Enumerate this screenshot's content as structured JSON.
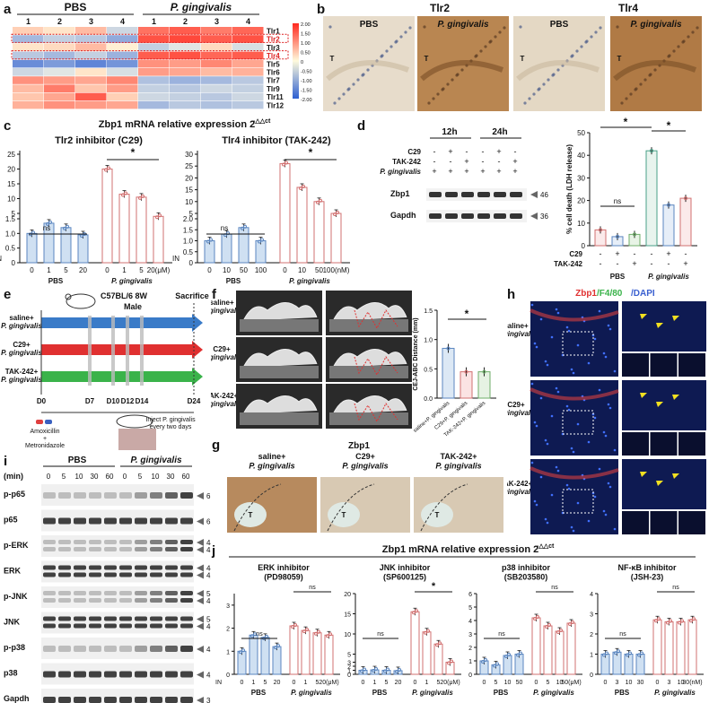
{
  "panel_letters": [
    "a",
    "b",
    "c",
    "d",
    "e",
    "f",
    "g",
    "h",
    "i",
    "j"
  ],
  "a": {
    "groups": [
      "PBS",
      "P. gingivalis"
    ],
    "columns": [
      "1",
      "2",
      "3",
      "4",
      "1",
      "2",
      "3",
      "4"
    ],
    "rows": [
      "Tlr1",
      "Tlr2",
      "Tlr3",
      "Tlr4",
      "Tlr5",
      "Tlr6",
      "Tlr7",
      "Tlr9",
      "Tlr11",
      "Tlr12"
    ],
    "highlight_rows": [
      "Tlr2",
      "Tlr4"
    ],
    "scale_ticks": [
      "2.00",
      "1.50",
      "1.00",
      "0.50",
      "0",
      "-0.50",
      "-1.00",
      "-1.50",
      "-2.00"
    ],
    "values": [
      [
        0.4,
        0.2,
        0.6,
        -0.4,
        1.3,
        1.5,
        1.2,
        1.4
      ],
      [
        -0.8,
        -0.5,
        -0.6,
        -1.0,
        1.6,
        1.7,
        1.5,
        1.6
      ],
      [
        0.2,
        0.3,
        0.6,
        0.1,
        -0.5,
        -0.2,
        0.3,
        -0.3
      ],
      [
        -0.6,
        -0.8,
        -0.5,
        -0.9,
        1.5,
        1.6,
        1.4,
        1.5
      ],
      [
        -1.4,
        -1.2,
        -1.5,
        -1.3,
        1.0,
        0.9,
        1.1,
        0.8
      ],
      [
        -0.4,
        -0.2,
        0.2,
        -0.3,
        0.9,
        0.8,
        0.6,
        0.7
      ],
      [
        1.0,
        0.9,
        0.8,
        1.1,
        -0.7,
        -0.9,
        -0.8,
        -0.6
      ],
      [
        0.6,
        1.2,
        0.5,
        0.9,
        -0.5,
        -0.6,
        -0.4,
        -0.5
      ],
      [
        0.5,
        0.8,
        1.5,
        0.4,
        -0.4,
        -0.5,
        -0.6,
        -0.4
      ],
      [
        0.7,
        1.0,
        0.9,
        0.8,
        -0.8,
        -0.6,
        -0.7,
        -0.6
      ]
    ]
  },
  "b": {
    "titles": [
      "Tlr2",
      "Tlr4"
    ],
    "labels": [
      "PBS",
      "P. gingivalis",
      "PBS",
      "P. gingivalis"
    ],
    "tissue_mark": "T"
  },
  "c": {
    "title": "Zbp1 mRNA relative expression 2",
    "title_sup": "-△△ct",
    "charts": [
      {
        "title": "Tlr2 inhibitor (C29)",
        "ticks": [
          "0",
          "1",
          "5",
          "20"
        ],
        "unit": "20(μM)",
        "pbs": [
          1.0,
          1.35,
          1.2,
          0.95
        ],
        "pg": [
          20,
          11.5,
          10.5,
          4.0
        ],
        "yticks": [
          "0",
          "0.5",
          "1.0",
          "1.5",
          "5",
          "10",
          "15",
          "20",
          "25"
        ]
      },
      {
        "title": "Tlr4 inhibitor (TAK-242)",
        "ticks": [
          "0",
          "10",
          "50",
          "100"
        ],
        "unit": "100(nM)",
        "pbs": [
          1.0,
          1.3,
          1.6,
          1.0
        ],
        "pg": [
          26,
          16,
          10,
          5
        ],
        "yticks": [
          "0",
          "0.5",
          "1.0",
          "1.5",
          "2.0",
          "5",
          "10",
          "15",
          "20",
          "25",
          "30"
        ]
      }
    ],
    "in_label": "IN",
    "group_pbs": "PBS",
    "group_pg": "P. gingivalis",
    "sig": "*",
    "ns": "ns"
  },
  "d": {
    "times": [
      "12h",
      "24h"
    ],
    "row_labels": [
      "C29",
      "TAK-242",
      "P. gingivalis"
    ],
    "matrix": [
      [
        "-",
        "+",
        "-",
        "-",
        "+",
        "-"
      ],
      [
        "-",
        "-",
        "+",
        "-",
        "-",
        "+"
      ],
      [
        "+",
        "+",
        "+",
        "+",
        "+",
        "+"
      ]
    ],
    "blots": [
      "Zbp1",
      "Gapdh"
    ],
    "kda": [
      "46",
      "36"
    ],
    "chart": {
      "ylabel": "% cell death (LDH release)",
      "yticks": [
        "0",
        "10",
        "20",
        "30",
        "40",
        "50"
      ],
      "values": [
        7,
        4,
        5,
        42,
        18,
        21
      ],
      "c29": [
        "-",
        "+",
        "-",
        "-",
        "+",
        "-"
      ],
      "tak": [
        "-",
        "-",
        "+",
        "-",
        "-",
        "+"
      ],
      "groups": [
        "PBS",
        "P. gingivalis"
      ],
      "row_labels": [
        "C29",
        "TAK-242"
      ]
    }
  },
  "e": {
    "strain": "C57BL/6  8W",
    "sex": "Male",
    "sacrifice": "Sacrifice",
    "arms": [
      "saline+\nP. gingivalis",
      "C29+\nP. gingivalis",
      "TAK-242+\nP. gingivalis"
    ],
    "days": [
      "D0",
      "D7",
      "D10",
      "D12",
      "D14",
      "D24"
    ],
    "abx": "Amoxicillin\n+\nMetronidazole",
    "inject": "Inject P. gingivalis\nevery two days"
  },
  "f": {
    "rows": [
      "saline+\nP. gingivalis",
      "C29+\nP. gingivalis",
      "TAK-242+\nP. gingivalis"
    ],
    "ylabel": "CEJ-ABC Distance (mm)",
    "yticks": [
      "0.0",
      "0.5",
      "1.0",
      "1.5"
    ],
    "values": [
      0.85,
      0.45,
      0.45
    ],
    "xlabels": [
      "saline+P. gingivalis",
      "C29+P. gingivalis",
      "TAK-242+P. gingivalis"
    ],
    "sig": "*"
  },
  "g": {
    "title": "Zbp1",
    "labels": [
      "saline+\nP. gingivalis",
      "C29+\nP. gingivalis",
      "TAK-242+\nP. gingivalis"
    ]
  },
  "h": {
    "legend": [
      "Zbp1",
      "/F4/80",
      "/DAPI"
    ],
    "rows": [
      "saline+\nP. gingivalis",
      "C29+\nP. gingivalis",
      "TAK-242+\nP. gingivalis"
    ]
  },
  "i": {
    "groups": [
      "PBS",
      "P. gingivalis"
    ],
    "min_label": "(min)",
    "times": [
      "0",
      "5",
      "10",
      "30",
      "60",
      "0",
      "5",
      "10",
      "30",
      "60"
    ],
    "blots": [
      {
        "name": "p-p65",
        "kda": [
          "65"
        ]
      },
      {
        "name": "p65",
        "kda": [
          "65"
        ]
      },
      {
        "name": "p-ERK",
        "kda": [
          "44",
          "42"
        ]
      },
      {
        "name": "ERK",
        "kda": [
          "44",
          "42"
        ]
      },
      {
        "name": "p-JNK",
        "kda": [
          "54",
          "46"
        ]
      },
      {
        "name": "JNK",
        "kda": [
          "54",
          "46"
        ]
      },
      {
        "name": "p-p38",
        "kda": [
          "42"
        ]
      },
      {
        "name": "p38",
        "kda": [
          "42"
        ]
      },
      {
        "name": "Gapdh",
        "kda": [
          "36"
        ]
      }
    ]
  },
  "j": {
    "title": "Zbp1 mRNA relative expression 2",
    "title_sup": "-△△ct",
    "charts": [
      {
        "title": "ERK inhibitor\n(PD98059)",
        "ticks": [
          "0",
          "1",
          "5",
          "20"
        ],
        "unit": "20(μM)",
        "pbs": [
          1.0,
          1.7,
          1.6,
          1.2
        ],
        "pg": [
          2.1,
          1.9,
          1.8,
          1.7
        ],
        "yticks": [
          "0",
          "1",
          "2",
          "3"
        ],
        "ymax": 3.5
      },
      {
        "title": "JNK inhibitor\n(SP600125)",
        "ticks": [
          "0",
          "1",
          "5",
          "20"
        ],
        "unit": "20(μM)",
        "pbs": [
          1.0,
          1.1,
          1.0,
          0.9
        ],
        "pg": [
          15.5,
          10.5,
          7.5,
          3.0
        ],
        "yticks": [
          "0",
          "1",
          "2",
          "3",
          "5",
          "10",
          "15",
          "20"
        ],
        "ymax": 20
      },
      {
        "title": "p38 inhibitor\n(SB203580)",
        "ticks": [
          "0",
          "5",
          "10",
          "50"
        ],
        "unit": "50(μM)",
        "pbs": [
          1.0,
          0.7,
          1.4,
          1.5
        ],
        "pg": [
          4.2,
          3.6,
          3.2,
          3.8
        ],
        "yticks": [
          "0",
          "1",
          "2",
          "3",
          "4",
          "5",
          "6"
        ],
        "ymax": 6
      },
      {
        "title": "NF-κB inhibitor\n(JSH-23)",
        "ticks": [
          "0",
          "3",
          "10",
          "30"
        ],
        "unit": "30(nM)",
        "pbs": [
          1.0,
          1.1,
          1.0,
          1.0
        ],
        "pg": [
          2.7,
          2.6,
          2.6,
          2.7
        ],
        "yticks": [
          "0",
          "1",
          "2",
          "3",
          "4"
        ],
        "ymax": 4
      }
    ],
    "in_label": "IN",
    "group_pbs": "PBS",
    "group_pg": "P. gingivalis",
    "sig": "*",
    "ns": "ns"
  }
}
